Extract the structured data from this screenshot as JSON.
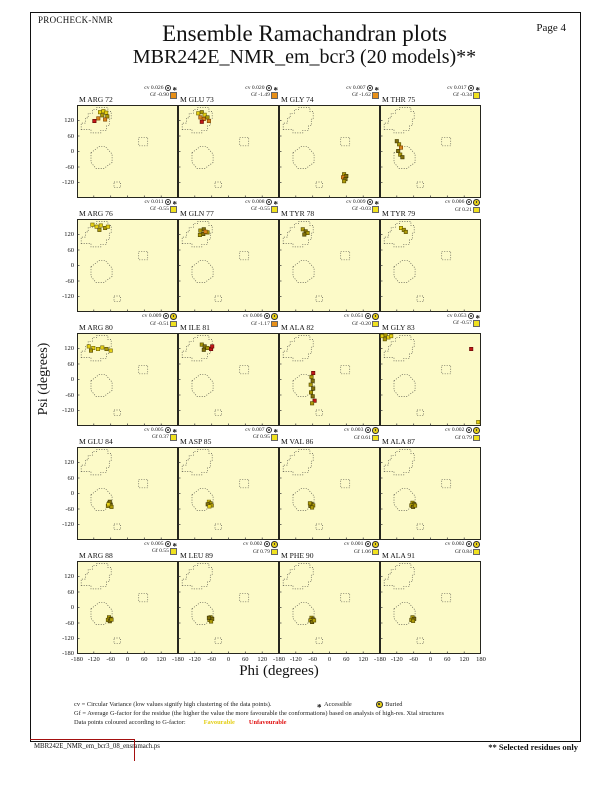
{
  "page": {
    "app_name": "PROCHECK-NMR",
    "page_label": "Page  4",
    "title": "Ensemble Ramachandran plots",
    "subtitle": "MBR242E_NMR_em_bcr3 (20 models)**"
  },
  "axes": {
    "xlabel": "Phi (degrees)",
    "ylabel": "Psi (degrees)",
    "x_tick_labels": [
      -180,
      -120,
      -60,
      0,
      60,
      120
    ],
    "x_tick_end": 180,
    "y_tick_labels": [
      120,
      60,
      0,
      -60,
      -120
    ],
    "y_tick_end": -180
  },
  "legend": {
    "line1": "cv = Circular Variance (low values signify high clustering of the data points).",
    "accessible_label": "Accessible",
    "buried_label": "Buried",
    "line2": "Gf = Average G-factor for the residue (the higher the value the more favourable the conformations) based on analysis of high-res. Xtal structures",
    "line3": "Data points coloured according to G-factor:",
    "favourable_label": "Favourable",
    "unfavourable_label": "Unfavourable",
    "favourable_color": "#E3CE14",
    "unfavourable_color": "#E01010"
  },
  "footer": {
    "filename": "MBR242E_NMR_em_bcr3_08_ensramach.ps",
    "note": "** Selected residues only"
  },
  "chart_data": {
    "type": "scatter",
    "x_range": [
      -180,
      180
    ],
    "y_range": [
      -180,
      180
    ],
    "plot_bg": "#FCFAC8",
    "point_colors": {
      "y": "#E5D013",
      "o": "#AD9A08",
      "d": "#80700A",
      "or": "#D8831C",
      "r": "#C21717"
    },
    "point_strokes": {
      "y": "#6e6200",
      "o": "#524800",
      "d": "#3c3400",
      "or": "#7c4300",
      "r": "#5e0404"
    },
    "gf_square_colors": {
      "yellow": "#F0E11E",
      "orange": "#E89018"
    },
    "regions": {
      "beta": [
        [
          -165,
          85
        ],
        [
          -130,
          85
        ],
        [
          -130,
          72
        ],
        [
          -95,
          72
        ],
        [
          -95,
          82
        ],
        [
          -75,
          82
        ],
        [
          -75,
          100
        ],
        [
          -65,
          100
        ],
        [
          -65,
          125
        ],
        [
          -58,
          125
        ],
        [
          -58,
          155
        ],
        [
          -70,
          155
        ],
        [
          -70,
          170
        ],
        [
          -110,
          170
        ],
        [
          -110,
          162
        ],
        [
          -125,
          162
        ],
        [
          -125,
          148
        ],
        [
          -140,
          148
        ],
        [
          -140,
          130
        ],
        [
          -150,
          130
        ],
        [
          -150,
          110
        ],
        [
          -165,
          110
        ]
      ],
      "alpha": [
        [
          -130,
          -5
        ],
        [
          -100,
          20
        ],
        [
          -80,
          20
        ],
        [
          -55,
          -10
        ],
        [
          -55,
          -42
        ],
        [
          -85,
          -66
        ],
        [
          -112,
          -66
        ],
        [
          -130,
          -42
        ]
      ],
      "lalpha": [
        [
          40,
          55
        ],
        [
          72,
          55
        ],
        [
          72,
          22
        ],
        [
          40,
          22
        ]
      ],
      "bottom": [
        [
          -48,
          -118
        ],
        [
          -25,
          -118
        ],
        [
          -25,
          -140
        ],
        [
          -48,
          -140
        ]
      ]
    },
    "plots": [
      {
        "residue": "M ARG 72",
        "cv": "0.026",
        "gf": "-0.90",
        "burial": "accessible",
        "gf_square": "orange",
        "points": [
          [
            -98,
            152,
            "y"
          ],
          [
            -86,
            156,
            "y"
          ],
          [
            -76,
            150,
            "y"
          ],
          [
            -90,
            140,
            "o"
          ],
          [
            -72,
            136,
            "o"
          ],
          [
            -104,
            128,
            "or"
          ],
          [
            -80,
            124,
            "or"
          ],
          [
            -118,
            118,
            "r"
          ]
        ]
      },
      {
        "residue": "M GLU 73",
        "cv": "0.020",
        "gf": "-1.49",
        "burial": "accessible",
        "gf_square": "orange",
        "points": [
          [
            -108,
            148,
            "y"
          ],
          [
            -95,
            152,
            "o"
          ],
          [
            -85,
            142,
            "y"
          ],
          [
            -100,
            132,
            "or"
          ],
          [
            -88,
            126,
            "or"
          ],
          [
            -75,
            132,
            "o"
          ],
          [
            -95,
            115,
            "r"
          ],
          [
            -70,
            118,
            "or"
          ]
        ]
      },
      {
        "residue": "M GLY 74",
        "cv": "0.007",
        "gf": "-1.62",
        "burial": "accessible",
        "gf_square": "orange",
        "points": [
          [
            52,
            -88,
            "o"
          ],
          [
            60,
            -95,
            "d"
          ],
          [
            48,
            -100,
            "or"
          ],
          [
            57,
            -107,
            "d"
          ],
          [
            52,
            -115,
            "o"
          ]
        ]
      },
      {
        "residue": "M THR 75",
        "cv": "0.017",
        "gf": "-0.34",
        "burial": "accessible",
        "gf_square": "yellow",
        "points": [
          [
            -120,
            40,
            "d"
          ],
          [
            -112,
            28,
            "o"
          ],
          [
            -105,
            15,
            "or"
          ],
          [
            -115,
            2,
            "d"
          ],
          [
            -108,
            -12,
            "o"
          ],
          [
            -100,
            -22,
            "d"
          ]
        ]
      },
      {
        "residue": "M ARG 76",
        "cv": "0.011",
        "gf": "-0.55",
        "burial": "accessible",
        "gf_square": "yellow",
        "points": [
          [
            -125,
            158,
            "y"
          ],
          [
            -110,
            150,
            "y"
          ],
          [
            -95,
            155,
            "y"
          ],
          [
            -80,
            145,
            "o"
          ],
          [
            -70,
            150,
            "y"
          ],
          [
            -100,
            138,
            "o"
          ]
        ]
      },
      {
        "residue": "M GLN 77",
        "cv": "0.008",
        "gf": "-0.55",
        "burial": "accessible",
        "gf_square": "yellow",
        "points": [
          [
            -100,
            135,
            "o"
          ],
          [
            -88,
            140,
            "d"
          ],
          [
            -75,
            128,
            "o"
          ],
          [
            -90,
            122,
            "d"
          ],
          [
            -102,
            118,
            "o"
          ],
          [
            -82,
            131,
            "or"
          ]
        ]
      },
      {
        "residue": "M TYR 78",
        "cv": "0.009",
        "gf": "-0.03",
        "burial": "accessible",
        "gf_square": "yellow",
        "points": [
          [
            -95,
            140,
            "o"
          ],
          [
            -85,
            132,
            "d"
          ],
          [
            -78,
            126,
            "o"
          ],
          [
            -90,
            120,
            "d"
          ]
        ]
      },
      {
        "residue": "M TYR 79",
        "cv": "0.006",
        "gf": "0.21",
        "burial": "buried",
        "gf_square": "yellow",
        "points": [
          [
            -105,
            145,
            "y"
          ],
          [
            -95,
            138,
            "o"
          ],
          [
            -88,
            130,
            "o"
          ]
        ]
      },
      {
        "residue": "M ARG 80",
        "cv": "0.009",
        "gf": "-0.51",
        "burial": "buried",
        "gf_square": "yellow",
        "points": [
          [
            -138,
            128,
            "y"
          ],
          [
            -122,
            122,
            "y"
          ],
          [
            -105,
            118,
            "y"
          ],
          [
            -90,
            124,
            "y"
          ],
          [
            -75,
            118,
            "o"
          ],
          [
            -60,
            112,
            "y"
          ],
          [
            -130,
            112,
            "o"
          ]
        ]
      },
      {
        "residue": "M ILE 81",
        "cv": "0.006",
        "gf": "-1.17",
        "burial": "buried",
        "gf_square": "orange",
        "points": [
          [
            -95,
            135,
            "o"
          ],
          [
            -85,
            128,
            "d"
          ],
          [
            -75,
            122,
            "o"
          ],
          [
            -62,
            118,
            "r"
          ],
          [
            -58,
            128,
            "r"
          ],
          [
            -88,
            115,
            "d"
          ]
        ]
      },
      {
        "residue": "M ALA 82",
        "cv": "0.051",
        "gf": "-0.20",
        "burial": "buried",
        "gf_square": "yellow",
        "points": [
          [
            -58,
            25,
            "r"
          ],
          [
            -64,
            10,
            "o"
          ],
          [
            -60,
            -5,
            "d"
          ],
          [
            -67,
            -20,
            "o"
          ],
          [
            -58,
            -35,
            "d"
          ],
          [
            -66,
            -50,
            "o"
          ],
          [
            -60,
            -65,
            "d"
          ],
          [
            -53,
            -82,
            "r"
          ],
          [
            -62,
            -92,
            "o"
          ]
        ]
      },
      {
        "residue": "M GLY 83",
        "cv": "0.053",
        "gf": "-0.57",
        "burial": "accessible",
        "gf_square": "yellow",
        "points": [
          [
            -172,
            168,
            "y"
          ],
          [
            -160,
            172,
            "o"
          ],
          [
            -150,
            163,
            "y"
          ],
          [
            -140,
            168,
            "y"
          ],
          [
            -163,
            156,
            "o"
          ],
          [
            145,
            118,
            "r"
          ],
          [
            170,
            -165,
            "y"
          ]
        ]
      },
      {
        "residue": "M GLU 84",
        "cv": "0.005",
        "gf": "0.37",
        "burial": "accessible",
        "gf_square": "yellow",
        "points": [
          [
            -66,
            -38,
            "o"
          ],
          [
            -60,
            -44,
            "d"
          ],
          [
            -70,
            -48,
            "o"
          ],
          [
            -63,
            -32,
            "d"
          ],
          [
            -57,
            -52,
            "o"
          ],
          [
            -68,
            -42,
            "y"
          ]
        ]
      },
      {
        "residue": "M ASP 85",
        "cv": "0.007",
        "gf": "0.95",
        "burial": "accessible",
        "gf_square": "yellow",
        "points": [
          [
            -70,
            -32,
            "y"
          ],
          [
            -64,
            -38,
            "o"
          ],
          [
            -74,
            -42,
            "d"
          ],
          [
            -60,
            -46,
            "o"
          ],
          [
            -68,
            -50,
            "y"
          ]
        ]
      },
      {
        "residue": "M VAL 86",
        "cv": "0.003",
        "gf": "0.61",
        "burial": "buried",
        "gf_square": "yellow",
        "points": [
          [
            -64,
            -40,
            "d"
          ],
          [
            -58,
            -46,
            "o"
          ],
          [
            -68,
            -48,
            "d"
          ],
          [
            -62,
            -54,
            "o"
          ],
          [
            -70,
            -38,
            "o"
          ]
        ]
      },
      {
        "residue": "M ALA 87",
        "cv": "0.002",
        "gf": "0.79",
        "burial": "buried",
        "gf_square": "yellow",
        "points": [
          [
            -64,
            -36,
            "o"
          ],
          [
            -58,
            -42,
            "d"
          ],
          [
            -68,
            -46,
            "o"
          ],
          [
            -62,
            -52,
            "d"
          ],
          [
            -55,
            -47,
            "o"
          ]
        ]
      },
      {
        "residue": "M ARG 88",
        "cv": "0.005",
        "gf": "0.55",
        "burial": "accessible",
        "gf_square": "yellow",
        "points": [
          [
            -66,
            -38,
            "o"
          ],
          [
            -60,
            -44,
            "d"
          ],
          [
            -70,
            -48,
            "o"
          ],
          [
            -63,
            -53,
            "d"
          ],
          [
            -57,
            -47,
            "o"
          ]
        ]
      },
      {
        "residue": "M LEU 89",
        "cv": "0.002",
        "gf": "0.79",
        "burial": "buried",
        "gf_square": "yellow",
        "points": [
          [
            -64,
            -38,
            "o"
          ],
          [
            -58,
            -44,
            "d"
          ],
          [
            -68,
            -48,
            "o"
          ],
          [
            -62,
            -54,
            "o"
          ],
          [
            -70,
            -40,
            "d"
          ]
        ]
      },
      {
        "residue": "M PHE 90",
        "cv": "0.001",
        "gf": "1.06",
        "burial": "buried",
        "gf_square": "yellow",
        "points": [
          [
            -64,
            -40,
            "o"
          ],
          [
            -58,
            -46,
            "d"
          ],
          [
            -68,
            -50,
            "o"
          ],
          [
            -62,
            -56,
            "d"
          ],
          [
            -55,
            -50,
            "o"
          ]
        ]
      },
      {
        "residue": "M ALA 91",
        "cv": "0.002",
        "gf": "0.84",
        "burial": "buried",
        "gf_square": "yellow",
        "points": [
          [
            -64,
            -38,
            "o"
          ],
          [
            -58,
            -44,
            "d"
          ],
          [
            -68,
            -48,
            "o"
          ],
          [
            -62,
            -52,
            "o"
          ]
        ]
      }
    ]
  }
}
